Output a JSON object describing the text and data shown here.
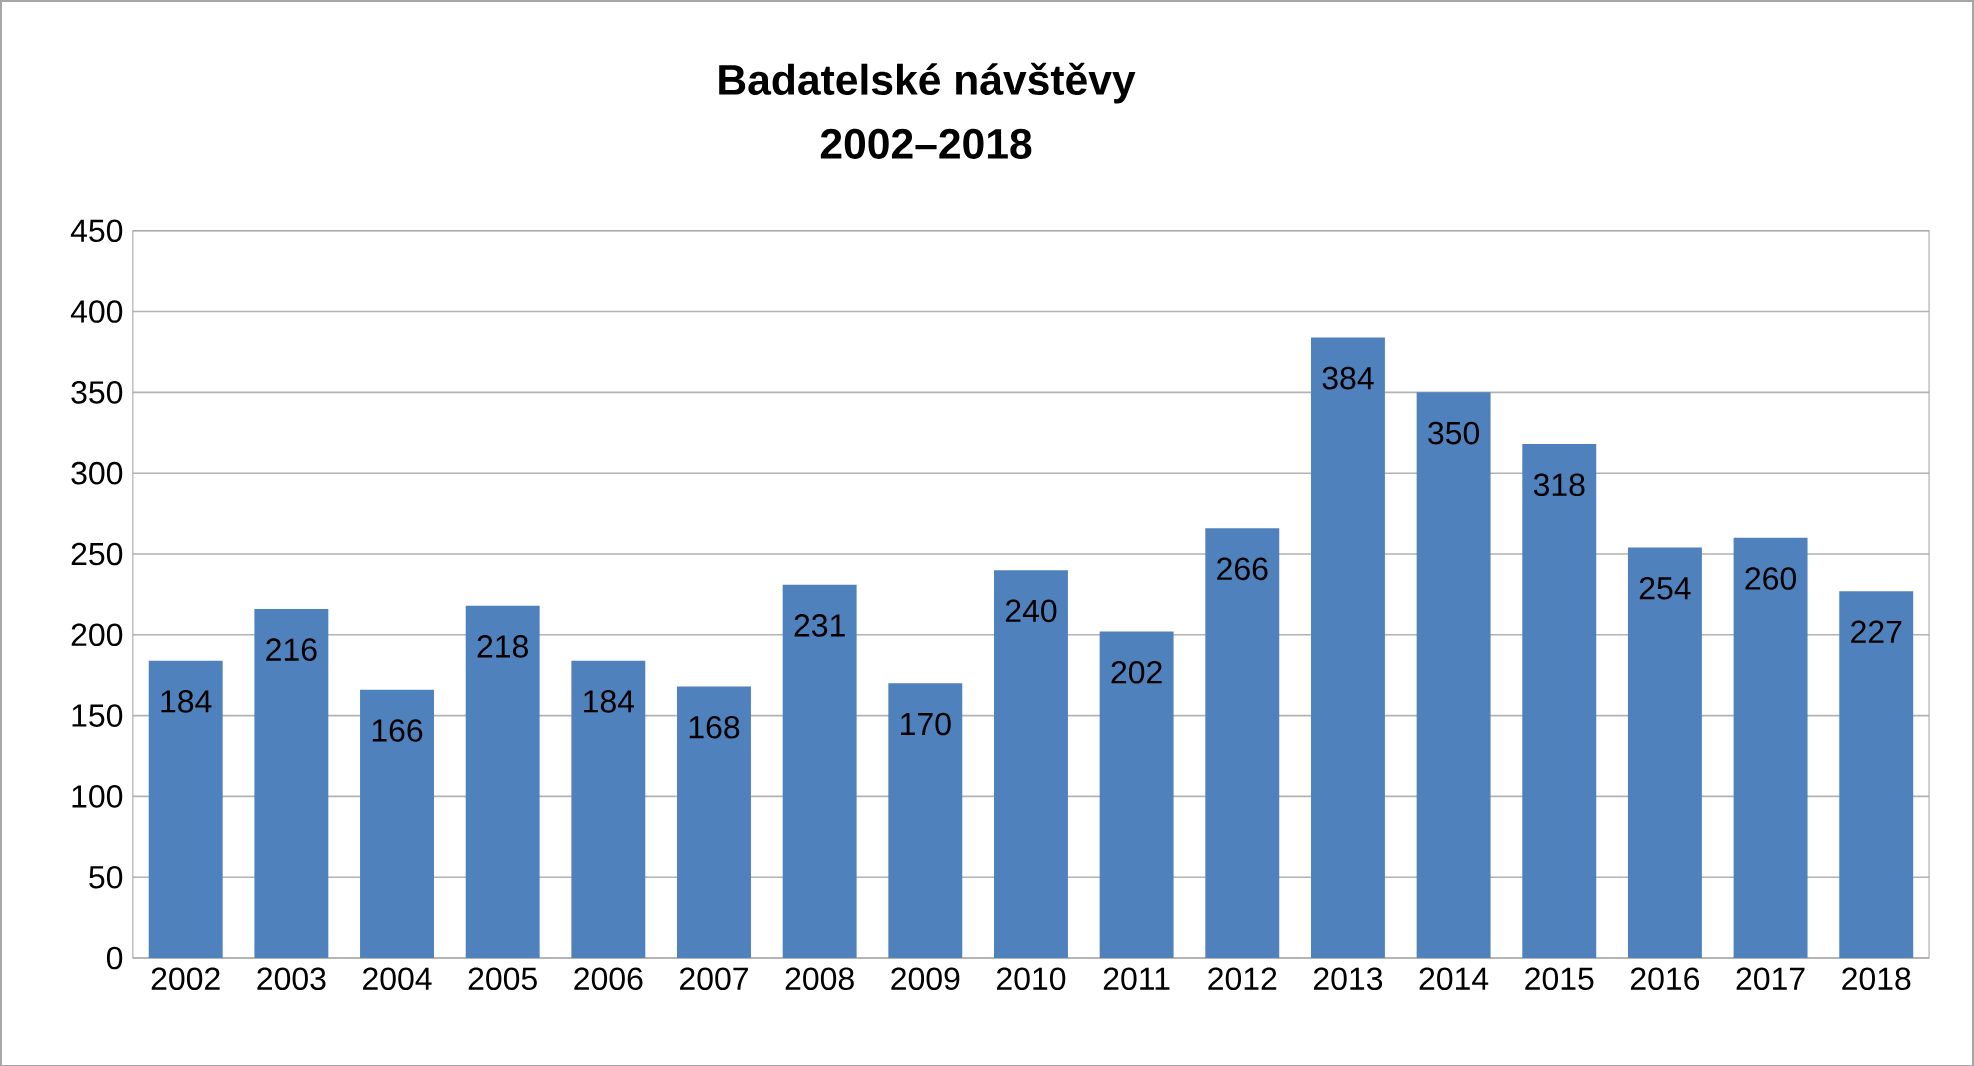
{
  "chart_data": {
    "type": "bar",
    "title": "Badatelské návštěvy",
    "subtitle": "2002–2018",
    "categories": [
      "2002",
      "2003",
      "2004",
      "2005",
      "2006",
      "2007",
      "2008",
      "2009",
      "2010",
      "2011",
      "2012",
      "2013",
      "2014",
      "2015",
      "2016",
      "2017",
      "2018"
    ],
    "values": [
      184,
      216,
      166,
      218,
      184,
      168,
      231,
      170,
      240,
      202,
      266,
      384,
      350,
      318,
      254,
      260,
      227
    ],
    "color": "#4f81bd",
    "ylim": [
      0,
      450
    ],
    "yticks": [
      0,
      50,
      100,
      150,
      200,
      250,
      300,
      350,
      400,
      450
    ],
    "grid": "y",
    "data_labels": true
  }
}
